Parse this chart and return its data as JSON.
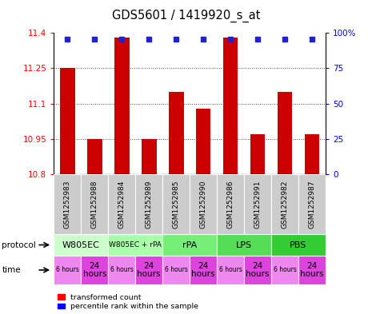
{
  "title": "GDS5601 / 1419920_s_at",
  "samples": [
    "GSM1252983",
    "GSM1252988",
    "GSM1252984",
    "GSM1252989",
    "GSM1252985",
    "GSM1252990",
    "GSM1252986",
    "GSM1252991",
    "GSM1252982",
    "GSM1252987"
  ],
  "transformed_counts": [
    11.25,
    10.95,
    11.38,
    10.95,
    11.15,
    11.08,
    11.38,
    10.97,
    11.15,
    10.97
  ],
  "ylim_left": [
    10.8,
    11.4
  ],
  "ylim_right": [
    0,
    100
  ],
  "yticks_left": [
    10.8,
    10.95,
    11.1,
    11.25,
    11.4
  ],
  "yticks_right": [
    0,
    25,
    50,
    75,
    100
  ],
  "bar_color": "#cc0000",
  "dot_color": "#2222cc",
  "protocol_defs": [
    {
      "label": "W805EC",
      "start": 0,
      "end": 2,
      "color": "#ccffcc"
    },
    {
      "label": "W805EC + rPA",
      "start": 2,
      "end": 4,
      "color": "#aaffaa"
    },
    {
      "label": "rPA",
      "start": 4,
      "end": 6,
      "color": "#77ee77"
    },
    {
      "label": "LPS",
      "start": 6,
      "end": 8,
      "color": "#55dd55"
    },
    {
      "label": "PBS",
      "start": 8,
      "end": 10,
      "color": "#33cc33"
    }
  ],
  "time_color_6": "#ee88ee",
  "time_color_24": "#dd44dd",
  "sample_bg_color": "#cccccc",
  "fig_bg": "#ffffff"
}
